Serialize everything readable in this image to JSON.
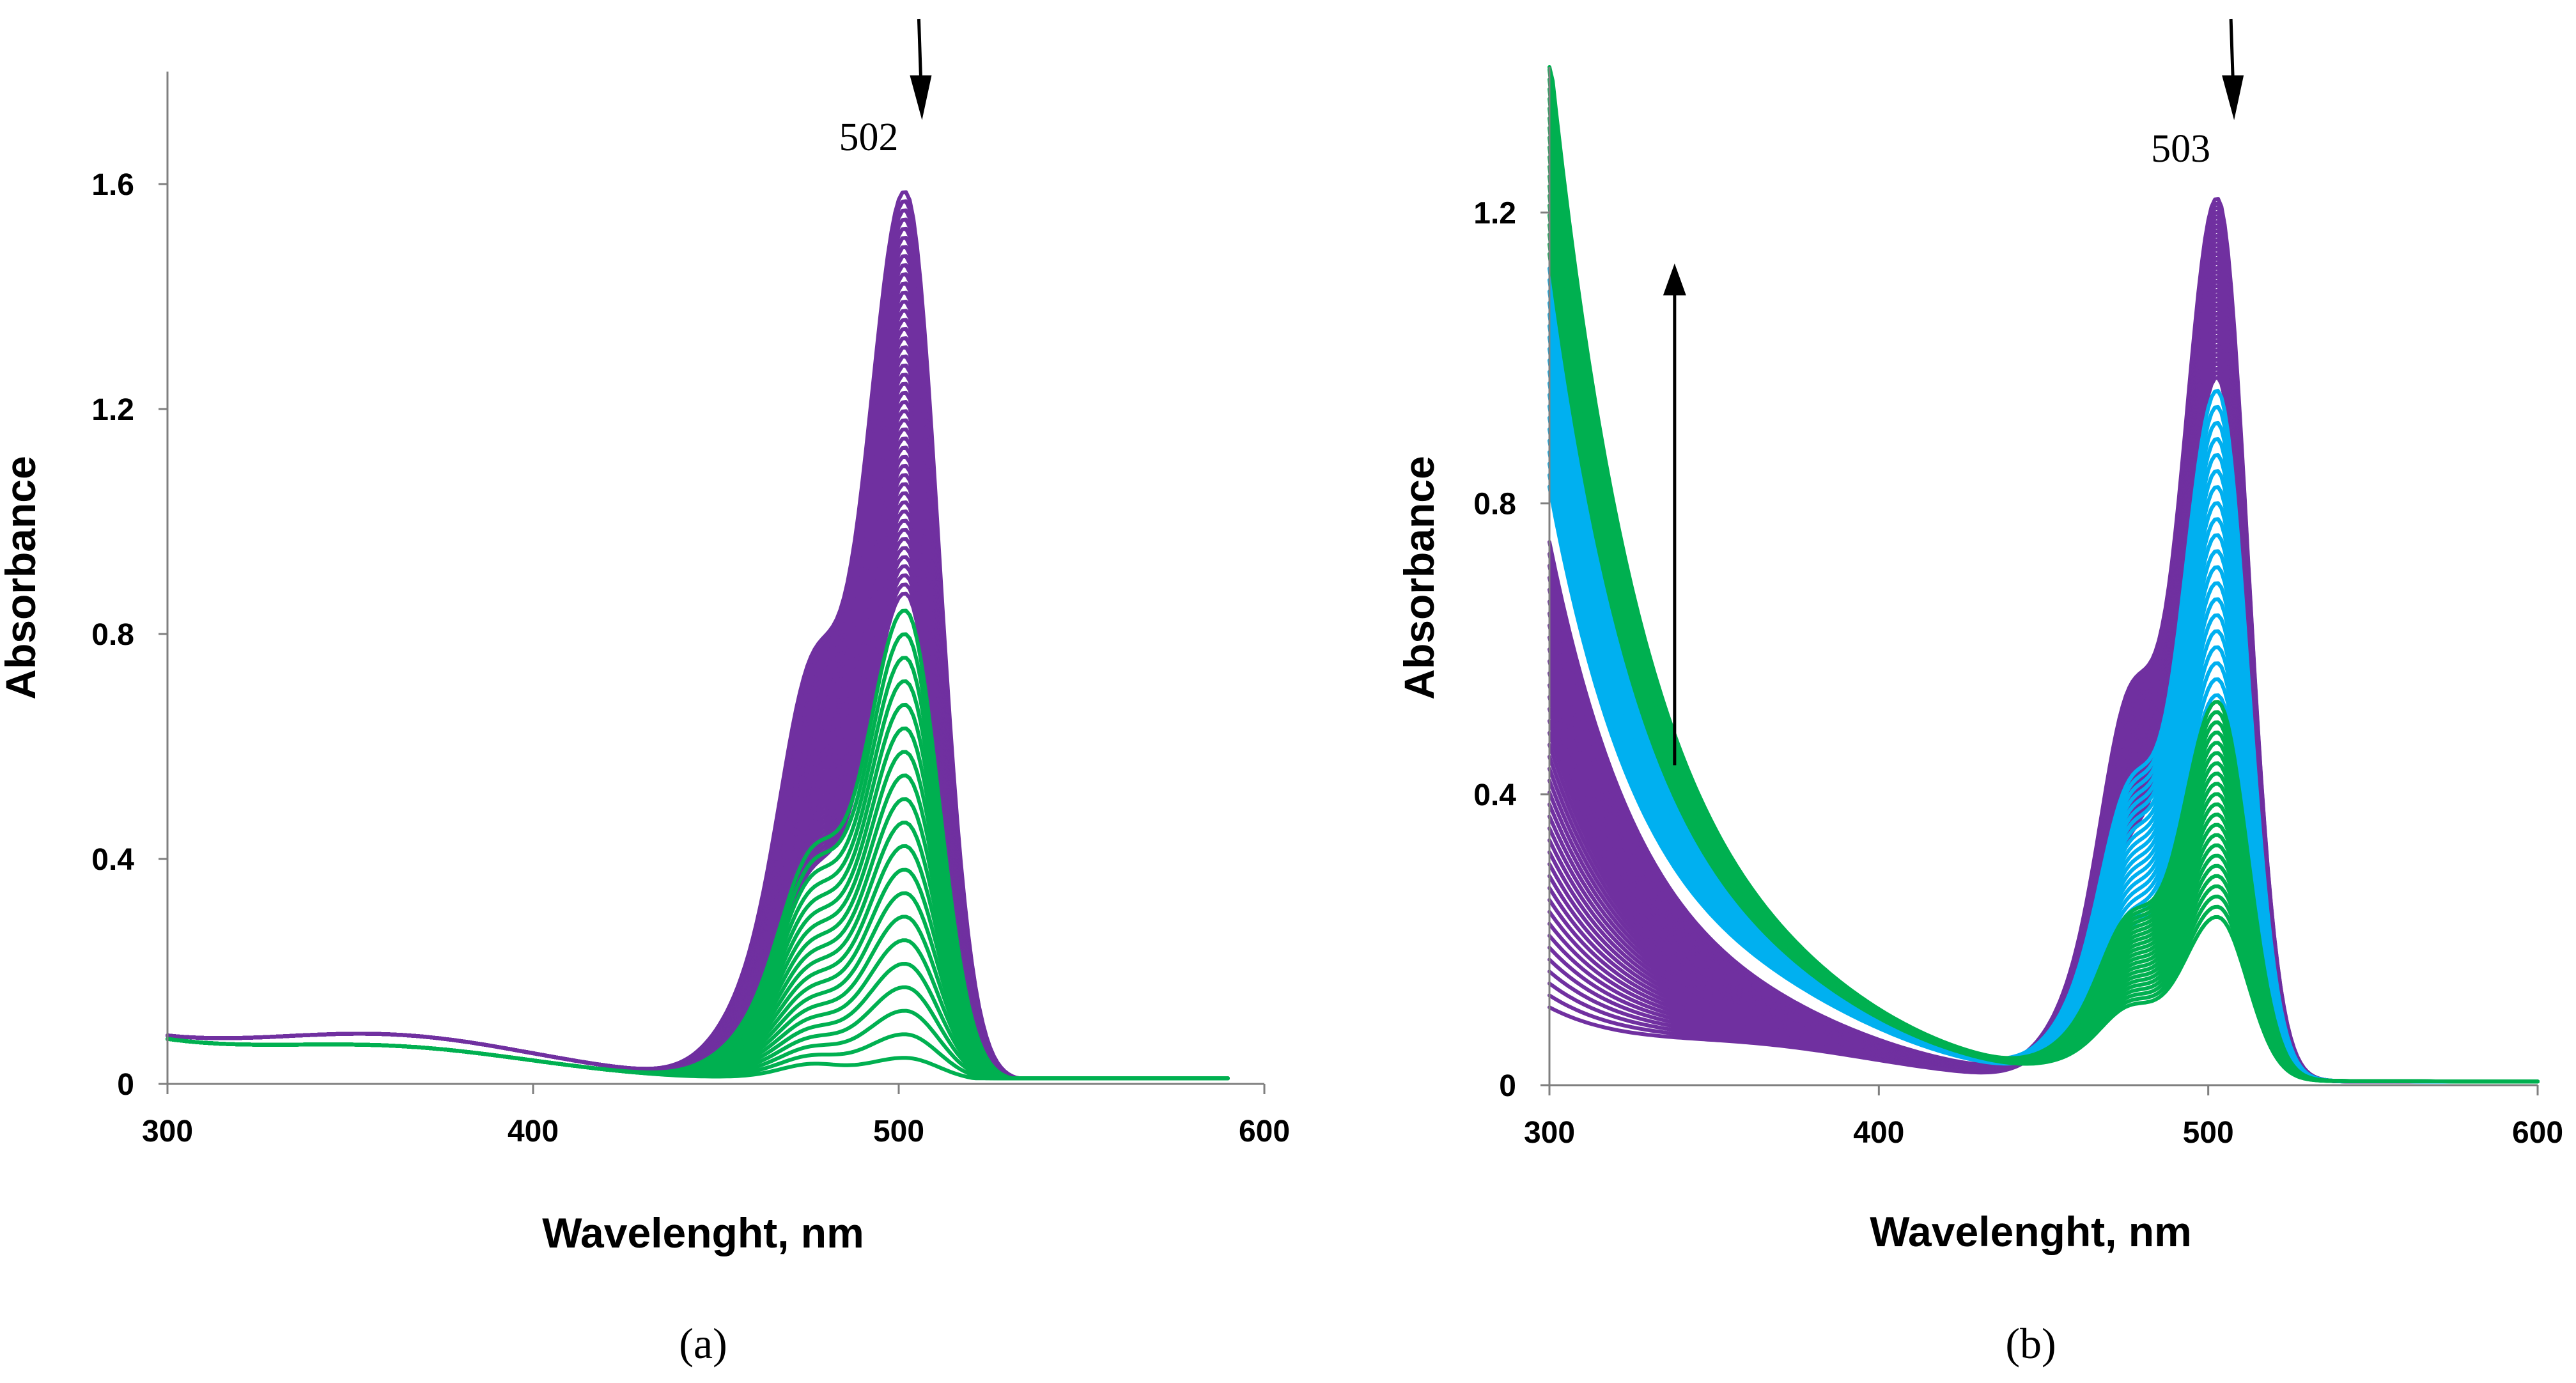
{
  "chart_data": [
    {
      "type": "line",
      "panel_label": "(a)",
      "title": "",
      "xlabel": "Wavelenght, nm",
      "ylabel": "Absorbance",
      "xlim": [
        300,
        600
      ],
      "ylim": [
        0,
        1.8
      ],
      "xticks": [
        300,
        400,
        500,
        600
      ],
      "yticks": [
        0,
        0.4,
        0.8,
        1.2,
        1.6
      ],
      "ytick_labels": [
        "0",
        "0.4",
        "0.8",
        "1.2",
        "1.6"
      ],
      "grid": false,
      "legend": "none",
      "annotations": [
        {
          "text": "502",
          "x": 502,
          "y": 1.66,
          "arrow": "down"
        }
      ],
      "series_groups": [
        {
          "color": "#7030a0",
          "peak_x": 502,
          "count": 45,
          "peak_max": 1.55,
          "peak_min": 0.85,
          "shoulder_x": 476,
          "shoulder_max": 0.39,
          "uv_max": 0.1,
          "uv_min": 0.085
        },
        {
          "color": "#00b050",
          "peak_x": 502,
          "count": 20,
          "peak_max": 0.82,
          "peak_min": 0.04,
          "shoulder_x": 476,
          "shoulder_max": 0.22,
          "uv_max": 0.11,
          "uv_min": 0.09
        }
      ]
    },
    {
      "type": "line",
      "panel_label": "(b)",
      "title": "",
      "xlabel": "Wavelenght, nm",
      "ylabel": "Absorbance",
      "xlim": [
        300,
        600
      ],
      "ylim": [
        0,
        1.4
      ],
      "xticks": [
        300,
        400,
        500,
        600
      ],
      "yticks": [
        0,
        0.4,
        0.8,
        1.2
      ],
      "ytick_labels": [
        "0",
        "0.4",
        "0.8",
        "1.2"
      ],
      "grid": false,
      "legend": "none",
      "annotations": [
        {
          "text": "503",
          "x": 503,
          "y": 1.27,
          "arrow": "down"
        },
        {
          "text": "",
          "x": 338,
          "y_from": 0.44,
          "y_to": 1.13,
          "arrow": "up"
        }
      ],
      "series_groups": [
        {
          "color": "#7030a0",
          "peak_x": 503,
          "count": 40,
          "peak_max": 1.19,
          "peak_min": 0.95,
          "shoulder_x": 476,
          "shoulder_max": 0.27,
          "uv_max": 0.73,
          "uv_min": 0.09
        },
        {
          "color": "#00b0f0",
          "peak_x": 503,
          "count": 20,
          "peak_max": 0.93,
          "peak_min": 0.52,
          "shoulder_x": 476,
          "shoulder_max": 0.2,
          "uv_max": 1.1,
          "uv_min": 0.8
        },
        {
          "color": "#00b050",
          "peak_x": 503,
          "count": 22,
          "peak_max": 0.51,
          "peak_min": 0.22,
          "shoulder_x": 476,
          "shoulder_max": 0.11,
          "uv_max": 1.4,
          "uv_min": 1.12
        }
      ]
    }
  ]
}
